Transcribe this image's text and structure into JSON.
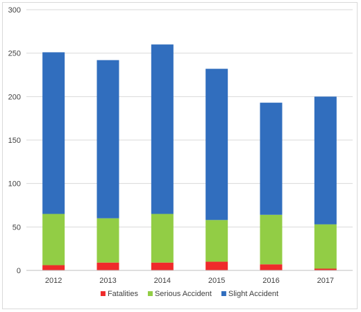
{
  "chart_data": {
    "type": "bar",
    "stacked": true,
    "categories": [
      "2012",
      "2013",
      "2014",
      "2015",
      "2016",
      "2017"
    ],
    "series": [
      {
        "name": "Fatalities",
        "color": "#ef2b2b",
        "values": [
          6,
          9,
          9,
          10,
          7,
          2
        ]
      },
      {
        "name": "Serious Accident",
        "color": "#92cd45",
        "values": [
          59,
          51,
          56,
          48,
          57,
          51
        ]
      },
      {
        "name": "Slight Accident",
        "color": "#316ebe",
        "values": [
          186,
          182,
          195,
          174,
          129,
          147
        ]
      }
    ],
    "y_ticks": [
      "0",
      "50",
      "100",
      "150",
      "200",
      "250",
      "300"
    ],
    "ylim": [
      0,
      300
    ],
    "grid": true,
    "legend_position": "bottom",
    "title": "",
    "xlabel": "",
    "ylabel": ""
  }
}
